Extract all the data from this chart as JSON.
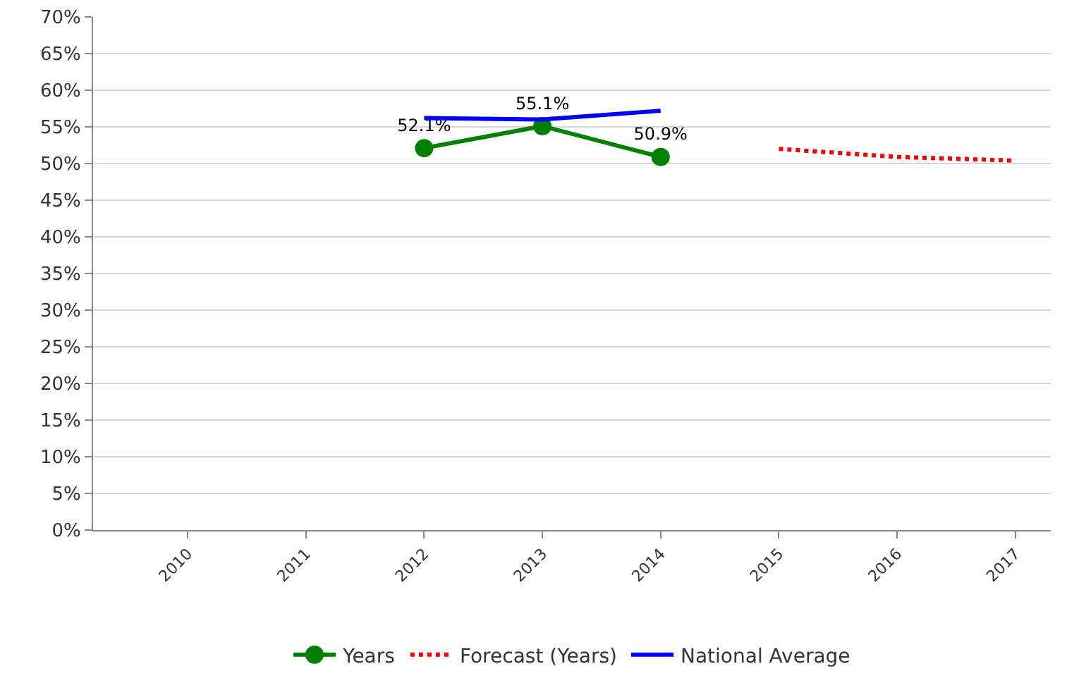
{
  "chart_data": {
    "type": "line",
    "categories": [
      "2010",
      "2011",
      "2012",
      "2013",
      "2014",
      "2015",
      "2016",
      "2017"
    ],
    "series": [
      {
        "name": "Years",
        "color": "#008000",
        "marker": "circle",
        "line_style": "solid",
        "values": [
          null,
          null,
          52.1,
          55.1,
          50.9,
          null,
          null,
          null
        ],
        "value_labels": [
          null,
          null,
          "52.1%",
          "55.1%",
          "50.9%",
          null,
          null,
          null
        ]
      },
      {
        "name": "Forecast (Years)",
        "color": "#ff0000",
        "marker": "none",
        "line_style": "dotted",
        "values": [
          null,
          null,
          null,
          null,
          null,
          52.0,
          50.9,
          50.4
        ]
      },
      {
        "name": "National Average",
        "color": "#0000ff",
        "marker": "none",
        "line_style": "solid",
        "values": [
          null,
          null,
          56.2,
          56.0,
          57.2,
          null,
          null,
          null
        ]
      }
    ],
    "ylim": [
      0,
      70
    ],
    "yticks": [
      {
        "value": 0,
        "label": "0%"
      },
      {
        "value": 5,
        "label": "5%"
      },
      {
        "value": 10,
        "label": "10%"
      },
      {
        "value": 15,
        "label": "15%"
      },
      {
        "value": 20,
        "label": "20%"
      },
      {
        "value": 25,
        "label": "25%"
      },
      {
        "value": 30,
        "label": "30%"
      },
      {
        "value": 35,
        "label": "35%"
      },
      {
        "value": 40,
        "label": "40%"
      },
      {
        "value": 45,
        "label": "45%"
      },
      {
        "value": 50,
        "label": "50%"
      },
      {
        "value": 55,
        "label": "55%"
      },
      {
        "value": 60,
        "label": "60%"
      },
      {
        "value": 65,
        "label": "65%"
      },
      {
        "value": 70,
        "label": "70%"
      }
    ],
    "grid": "y",
    "legend": "bottom"
  }
}
